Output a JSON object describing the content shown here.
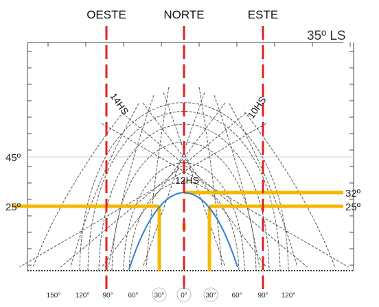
{
  "directions": {
    "west": "OESTE",
    "north": "NORTE",
    "east": "ESTE"
  },
  "latitude": "35º LS",
  "altitude_labels": {
    "a45": "45º",
    "a25_left": "25º",
    "a32_right": "32º",
    "a25_right": "25º"
  },
  "hour_labels": {
    "h14": "14HS",
    "h10": "10HS",
    "h12": "12HS"
  },
  "azimuth_ticks": [
    "150°",
    "120°",
    "90°",
    "60°",
    "30°",
    "0°",
    "30°",
    "60°",
    "90°",
    "120°"
  ],
  "colors": {
    "direction_line": "#e02020",
    "highlight": "#f5b800",
    "sun_path": "#2f7fd0",
    "grid": "#555555"
  }
}
